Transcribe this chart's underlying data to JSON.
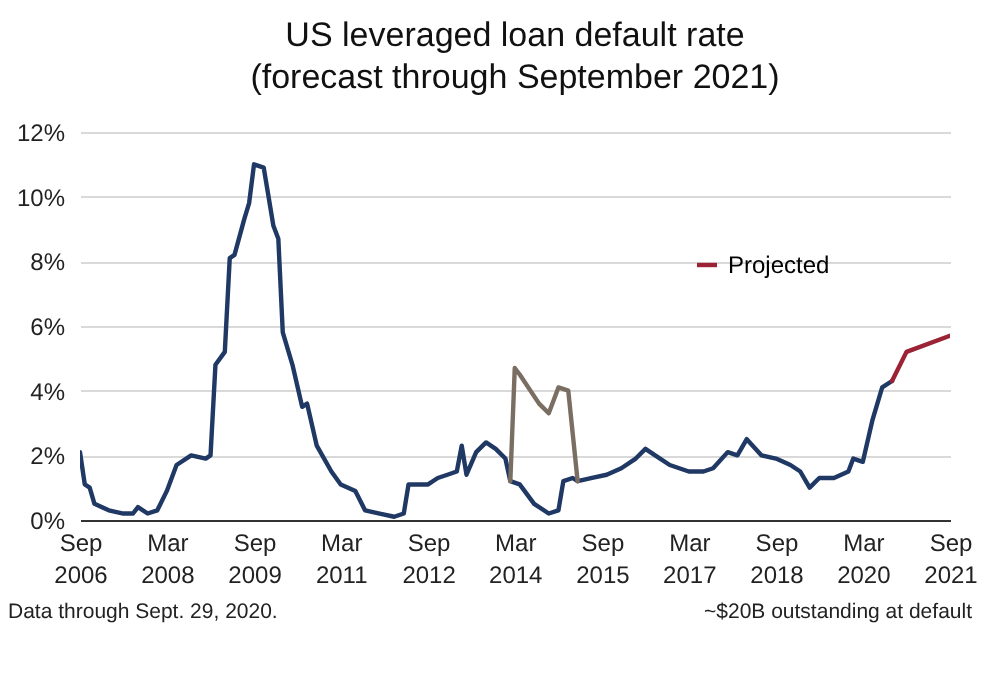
{
  "chart_data": {
    "type": "line",
    "title": "US leveraged loan default rate\n(forecast through September 2021)",
    "series": [
      {
        "color": "#1f3864",
        "x": [
          "2006-09",
          "2006-10",
          "2006-11",
          "2006-12",
          "2007-03",
          "2007-06",
          "2007-08",
          "2007-09",
          "2007-11",
          "2008-01",
          "2008-03",
          "2008-05",
          "2008-08",
          "2008-11",
          "2008-12",
          "2009-01",
          "2009-03",
          "2009-04",
          "2009-05",
          "2009-07",
          "2009-08",
          "2009-09",
          "2009-11",
          "2010-01",
          "2010-02",
          "2010-03",
          "2010-05",
          "2010-07",
          "2010-08",
          "2010-10",
          "2011-01",
          "2011-03",
          "2011-06",
          "2011-08",
          "2011-11",
          "2012-02",
          "2012-04",
          "2012-05",
          "2012-09",
          "2012-11",
          "2013-01",
          "2013-03",
          "2013-04",
          "2013-05",
          "2013-07",
          "2013-09",
          "2013-11",
          "2014-01",
          "2014-02",
          "2014-04",
          "2014-07",
          "2014-10",
          "2014-12",
          "2015-01",
          "2015-03",
          "2015-04",
          "2015-07",
          "2015-10",
          "2016-01",
          "2016-04",
          "2016-06",
          "2016-08",
          "2016-11",
          "2017-03",
          "2017-06",
          "2017-08",
          "2017-11",
          "2018-01",
          "2018-03",
          "2018-06",
          "2018-09",
          "2018-12",
          "2019-02",
          "2019-04",
          "2019-06",
          "2019-09",
          "2019-12",
          "2020-01",
          "2020-03",
          "2020-05",
          "2020-07",
          "2020-09"
        ],
        "values": [
          2.1,
          1.1,
          1.0,
          0.5,
          0.3,
          0.2,
          0.2,
          0.4,
          0.2,
          0.3,
          0.9,
          1.7,
          2.0,
          1.9,
          2.0,
          4.8,
          5.2,
          8.1,
          8.2,
          9.3,
          9.8,
          11.0,
          10.9,
          9.1,
          8.7,
          5.8,
          4.8,
          3.5,
          3.6,
          2.3,
          1.5,
          1.1,
          0.9,
          0.3,
          0.2,
          0.1,
          0.2,
          1.1,
          1.1,
          1.3,
          1.4,
          1.5,
          2.3,
          1.4,
          2.1,
          2.4,
          2.2,
          1.9,
          1.2,
          1.1,
          0.5,
          0.2,
          0.3,
          1.2,
          1.3,
          1.2,
          1.3,
          1.4,
          1.6,
          1.9,
          2.2,
          2.0,
          1.7,
          1.5,
          1.5,
          1.6,
          2.1,
          2.0,
          2.5,
          2.0,
          1.9,
          1.7,
          1.5,
          1.0,
          1.3,
          1.3,
          1.5,
          1.9,
          1.8,
          3.1,
          4.1,
          4.3
        ]
      },
      {
        "color": "#7a6e63",
        "x": [
          "2014-02",
          "2014-03",
          "2014-04",
          "2014-08",
          "2014-10",
          "2014-12",
          "2015-02",
          "2015-04"
        ],
        "values": [
          1.2,
          4.7,
          4.5,
          3.6,
          3.3,
          4.1,
          4.0,
          1.2
        ]
      },
      {
        "name": "Projected",
        "color": "#9b2335",
        "x": [
          "2020-09",
          "2020-12",
          "2021-09"
        ],
        "values": [
          4.3,
          5.2,
          5.7
        ]
      }
    ],
    "xlim": [
      "2006-09",
      "2021-09"
    ],
    "xticks": [
      {
        "value": "2006-09",
        "label": "Sep 2006"
      },
      {
        "value": "2008-03",
        "label": "Mar 2008"
      },
      {
        "value": "2009-09",
        "label": "Sep 2009"
      },
      {
        "value": "2011-03",
        "label": "Mar 2011"
      },
      {
        "value": "2012-09",
        "label": "Sep 2012"
      },
      {
        "value": "2014-03",
        "label": "Mar 2014"
      },
      {
        "value": "2015-09",
        "label": "Sep 2015"
      },
      {
        "value": "2017-03",
        "label": "Mar 2017"
      },
      {
        "value": "2018-09",
        "label": "Sep 2018"
      },
      {
        "value": "2020-03",
        "label": "Mar 2020"
      },
      {
        "value": "2021-09",
        "label": "Sep 2021"
      }
    ],
    "ylim": [
      0,
      12
    ],
    "yticks": [
      {
        "value": 0,
        "label": "0%"
      },
      {
        "value": 2,
        "label": "2%"
      },
      {
        "value": 4,
        "label": "4%"
      },
      {
        "value": 6,
        "label": "6%"
      },
      {
        "value": 8,
        "label": "8%"
      },
      {
        "value": 10,
        "label": "10%"
      },
      {
        "value": 12,
        "label": "12%"
      }
    ],
    "grid": "y",
    "legend": "top right",
    "line_style": "solid",
    "annotations": [
      "Data through Sept. 29, 2020.",
      "~$20B outstanding at default"
    ]
  }
}
